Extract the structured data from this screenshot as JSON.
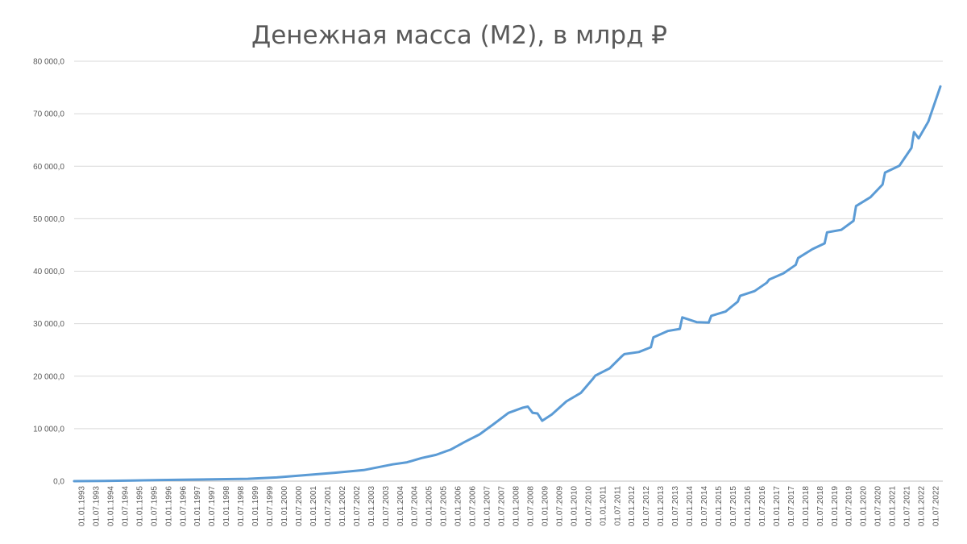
{
  "chart_data": {
    "type": "line",
    "title": "Денежная масса (М2), в млрд ₽",
    "xlabel": "",
    "ylabel": "",
    "ylim": [
      0,
      80000
    ],
    "y_ticks": [
      0,
      10000,
      20000,
      30000,
      40000,
      50000,
      60000,
      70000,
      80000
    ],
    "y_tick_labels": [
      "0,0",
      "10 000,0",
      "20 000,0",
      "30 000,0",
      "40 000,0",
      "50 000,0",
      "60 000,0",
      "70 000,0",
      "80 000,0"
    ],
    "x_tick_labels": [
      "01.01.1993",
      "01.07.1993",
      "01.01.1994",
      "01.07.1994",
      "01.01.1995",
      "01.07.1995",
      "01.01.1996",
      "01.07.1996",
      "01.01.1997",
      "01.07.1997",
      "01.01.1998",
      "01.07.1998",
      "01.01.1999",
      "01.07.1999",
      "01.01.2000",
      "01.07.2000",
      "01.01.2001",
      "01.07.2001",
      "01.01.2002",
      "01.07.2002",
      "01.01.2003",
      "01.07.2003",
      "01.01.2004",
      "01.07.2004",
      "01.01.2005",
      "01.07.2005",
      "01.01.2006",
      "01.07.2006",
      "01.01.2007",
      "01.07.2007",
      "01.01.2008",
      "01.07.2008",
      "01.01.2009",
      "01.07.2009",
      "01.01.2010",
      "01.07.2010",
      "01.01.2011",
      "01.07.2011",
      "01.01.2012",
      "01.07.2012",
      "01.01.2013",
      "01.07.2013",
      "01.01.2014",
      "01.07.2014",
      "01.01.2015",
      "01.07.2015",
      "01.01.2016",
      "01.07.2016",
      "01.01.2017",
      "01.07.2017",
      "01.01.2018",
      "01.07.2018",
      "01.01.2019",
      "01.07.2019",
      "01.01.2020",
      "01.07.2020",
      "01.01.2021",
      "01.07.2021",
      "01.01.2022",
      "01.07.2022"
    ],
    "grid": true,
    "legend": "none",
    "line_color": "#5b9bd5",
    "series": [
      {
        "x": [
          "1993-01-01",
          "1994-01-01",
          "1995-01-01",
          "1996-01-01",
          "1997-01-01",
          "1998-01-01",
          "1999-01-01",
          "2000-01-01",
          "2001-01-01",
          "2002-01-01",
          "2003-01-01",
          "2004-01-01",
          "2004-07-01",
          "2005-01-01",
          "2005-07-01",
          "2006-01-01",
          "2006-07-01",
          "2007-01-01",
          "2007-07-01",
          "2008-01-01",
          "2008-07-01",
          "2008-09-01",
          "2008-11-01",
          "2009-01-01",
          "2009-03-01",
          "2009-07-01",
          "2010-01-01",
          "2010-07-01",
          "2010-12-01",
          "2011-01-01",
          "2011-07-01",
          "2011-12-01",
          "2012-01-01",
          "2012-07-01",
          "2012-12-01",
          "2013-01-01",
          "2013-07-01",
          "2013-12-01",
          "2014-01-01",
          "2014-07-01",
          "2014-12-01",
          "2015-01-01",
          "2015-07-01",
          "2015-12-01",
          "2016-01-01",
          "2016-07-01",
          "2016-12-01",
          "2017-01-01",
          "2017-07-01",
          "2017-12-01",
          "2018-01-01",
          "2018-07-01",
          "2018-12-01",
          "2019-01-01",
          "2019-07-01",
          "2019-12-01",
          "2020-01-01",
          "2020-07-01",
          "2020-12-01",
          "2021-01-01",
          "2021-07-01",
          "2021-12-01",
          "2022-01-01",
          "2022-03-01",
          "2022-07-01",
          "2022-12-01"
        ],
        "values": [
          5,
          30,
          100,
          220,
          290,
          370,
          450,
          700,
          1150,
          1600,
          2100,
          3200,
          3600,
          4400,
          5000,
          6000,
          7500,
          8900,
          10900,
          13000,
          14000,
          14200,
          13000,
          12900,
          11500,
          12700,
          15200,
          16800,
          19500,
          20100,
          21500,
          23800,
          24200,
          24600,
          25500,
          27400,
          28600,
          29000,
          31200,
          30300,
          30200,
          31500,
          32300,
          34200,
          35300,
          36200,
          37800,
          38400,
          39600,
          41200,
          42500,
          44200,
          45300,
          47400,
          47900,
          49600,
          52400,
          54100,
          56500,
          58800,
          60100,
          63500,
          66500,
          65300,
          68500,
          75200
        ]
      }
    ]
  }
}
